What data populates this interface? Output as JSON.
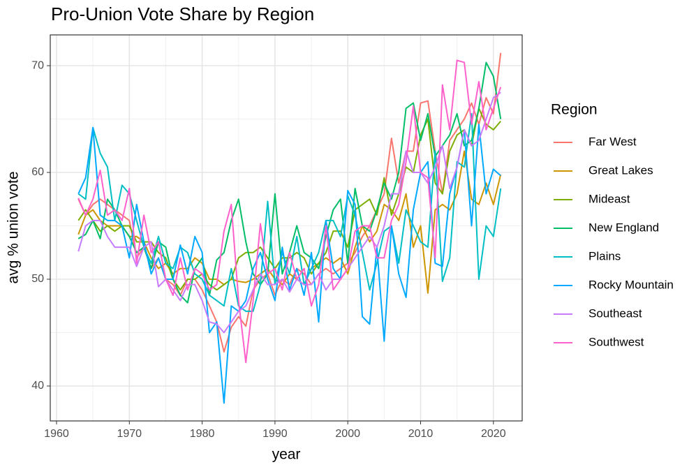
{
  "chart_data": {
    "type": "line",
    "title": "Pro-Union Vote Share by Region",
    "x_label": "year",
    "y_label": "avg % union vote",
    "legend_title": "Region",
    "x": [
      1963,
      1964,
      1965,
      1966,
      1967,
      1968,
      1969,
      1970,
      1971,
      1972,
      1973,
      1974,
      1975,
      1976,
      1977,
      1978,
      1979,
      1980,
      1981,
      1982,
      1983,
      1984,
      1985,
      1986,
      1987,
      1988,
      1989,
      1990,
      1991,
      1992,
      1993,
      1994,
      1995,
      1996,
      1997,
      1998,
      1999,
      2000,
      2001,
      2002,
      2003,
      2004,
      2005,
      2006,
      2007,
      2008,
      2009,
      2010,
      2011,
      2012,
      2013,
      2014,
      2015,
      2016,
      2017,
      2018,
      2019,
      2020,
      2021
    ],
    "xlim": [
      1959.14,
      2023.95
    ],
    "xticks": [
      1960,
      1970,
      1980,
      1990,
      2000,
      2010,
      2020
    ],
    "ylim": [
      36.73,
      72.88
    ],
    "yticks": [
      40,
      50,
      60,
      70
    ],
    "grid": true,
    "legend_position": "right",
    "series": [
      {
        "name": "Far West",
        "color": "#F8766D",
        "values": [
          57.5,
          56,
          57,
          57.5,
          57,
          56.5,
          56,
          55.5,
          52,
          53,
          51,
          52,
          50,
          49.5,
          48.5,
          50,
          50,
          49,
          47.5,
          46,
          43.2,
          45.5,
          46.5,
          45.6,
          49,
          50,
          50.5,
          48.5,
          50,
          49.5,
          51,
          50.5,
          49.5,
          50.5,
          51,
          50.5,
          51,
          51.5,
          52.5,
          54,
          55,
          56.5,
          58,
          63.2,
          59,
          62,
          62,
          66.5,
          66.7,
          62,
          58,
          63,
          64,
          65,
          66.5,
          64.5,
          67,
          65.5,
          71.2
        ]
      },
      {
        "name": "Great Lakes",
        "color": "#CD9600",
        "values": [
          54.2,
          56,
          56.5,
          55.5,
          55,
          55,
          55,
          54,
          54,
          53.5,
          52,
          51,
          51.5,
          50.5,
          51,
          51,
          52,
          51.5,
          50,
          50,
          49.5,
          50,
          49.8,
          49.7,
          50,
          50.5,
          51,
          50,
          49.5,
          50.5,
          50,
          49.5,
          51,
          51.5,
          52,
          51.5,
          52,
          50.5,
          53,
          55,
          53.5,
          54.5,
          57,
          56.5,
          55.5,
          58,
          53,
          55,
          48.7,
          56.5,
          57,
          56.5,
          58,
          62,
          57.5,
          57,
          59,
          57,
          59.8
        ]
      },
      {
        "name": "Mideast",
        "color": "#7CAE00",
        "values": [
          55.5,
          56.5,
          55.5,
          54.5,
          55,
          54.5,
          55,
          55,
          53.5,
          53.5,
          53.5,
          52.5,
          52,
          50,
          49,
          50,
          50,
          50.5,
          49.5,
          49,
          49.5,
          50,
          52,
          52.5,
          52.5,
          53,
          52,
          51,
          52,
          52,
          52.5,
          52,
          50.5,
          51.5,
          52.5,
          54.5,
          54.5,
          53,
          56.5,
          57,
          57.5,
          56,
          59.5,
          56,
          58,
          60.5,
          60,
          63.5,
          65,
          59,
          58,
          62,
          63.5,
          64,
          62.5,
          66,
          64.5,
          64,
          64.8
        ]
      },
      {
        "name": "New England",
        "color": "#00BE67",
        "values": [
          53.8,
          54.2,
          55.5,
          53.8,
          57.5,
          56.5,
          55,
          54,
          52.5,
          53,
          51,
          53.5,
          53,
          50,
          48.5,
          47.8,
          51,
          52,
          48.5,
          51.8,
          52.5,
          55.5,
          57.5,
          53.5,
          50.5,
          49.5,
          50.5,
          58,
          50.5,
          52.5,
          55,
          52.5,
          52,
          51,
          54,
          56.5,
          57.5,
          51.5,
          58.5,
          55,
          54.5,
          56.5,
          59,
          57.5,
          60,
          66,
          66.5,
          63,
          65.5,
          61.5,
          62.5,
          63.5,
          65.5,
          62.5,
          63,
          66,
          70.3,
          69,
          65
        ]
      },
      {
        "name": "Plains",
        "color": "#00BFC4",
        "values": [
          58,
          57.5,
          64.2,
          61.8,
          60.5,
          55.5,
          58.8,
          58,
          55.5,
          53,
          51.5,
          54,
          51.5,
          51,
          53,
          52.5,
          50.5,
          50,
          48.5,
          48,
          47.5,
          51,
          47.5,
          47,
          47,
          49.5,
          57.3,
          49.5,
          52.5,
          50.5,
          54,
          49.5,
          51,
          52.5,
          55.5,
          55.5,
          54,
          57.8,
          56,
          52.5,
          49,
          51.5,
          54.5,
          55,
          51.5,
          56.5,
          55,
          53.5,
          53,
          62,
          49.8,
          52,
          61,
          60.5,
          65.5,
          50,
          55,
          54,
          58.5
        ]
      },
      {
        "name": "Rocky Mountain",
        "color": "#00A9FF",
        "values": [
          58,
          59.5,
          64.2,
          56,
          55.5,
          55.5,
          55,
          52,
          57,
          53.5,
          50.5,
          52,
          50,
          50,
          53.2,
          50.5,
          54,
          52.5,
          45,
          46,
          38.4,
          47.5,
          47,
          48,
          51,
          52.5,
          50,
          48,
          53,
          49,
          51,
          48.5,
          52.5,
          46,
          55.5,
          51,
          50,
          58.3,
          57,
          46.5,
          45.8,
          53,
          44.2,
          55,
          50.5,
          48.3,
          56.5,
          60,
          61,
          51.5,
          51.2,
          58,
          60.5,
          64,
          55,
          64.5,
          58,
          60.3,
          59.7
        ]
      },
      {
        "name": "Southeast",
        "color": "#C77CFF",
        "values": [
          52.6,
          55,
          55.5,
          55.5,
          54,
          53,
          53,
          53,
          51.2,
          53,
          53.5,
          49.3,
          50,
          49,
          48,
          49.5,
          49.5,
          48,
          46,
          45.8,
          45,
          46,
          47,
          47.5,
          49,
          50.5,
          49.5,
          49.5,
          50,
          48.8,
          50,
          49.5,
          49.5,
          50.5,
          49,
          50,
          50,
          51,
          52,
          53,
          54,
          53,
          55,
          58,
          58,
          62,
          60,
          60,
          59,
          60.5,
          62.5,
          58.5,
          60.5,
          64,
          62.5,
          63,
          65,
          67,
          67.5
        ]
      },
      {
        "name": "Southwest",
        "color": "#FF61CC",
        "values": [
          57.6,
          56,
          57.5,
          60.2,
          56,
          56.5,
          55.5,
          58.5,
          51.5,
          56,
          52.5,
          53.5,
          50,
          48.5,
          52,
          49,
          51,
          50.5,
          49,
          49.5,
          54.5,
          57,
          48,
          42.2,
          48,
          55.2,
          50.5,
          51,
          49,
          52.5,
          50,
          51,
          47.5,
          49.5,
          55,
          49,
          50,
          51,
          54.5,
          55,
          55,
          52,
          52,
          55.5,
          57,
          61,
          66.2,
          60,
          59.5,
          52,
          68.2,
          64,
          70.5,
          70.3,
          64.5,
          68.5,
          64,
          66,
          68
        ]
      }
    ]
  }
}
